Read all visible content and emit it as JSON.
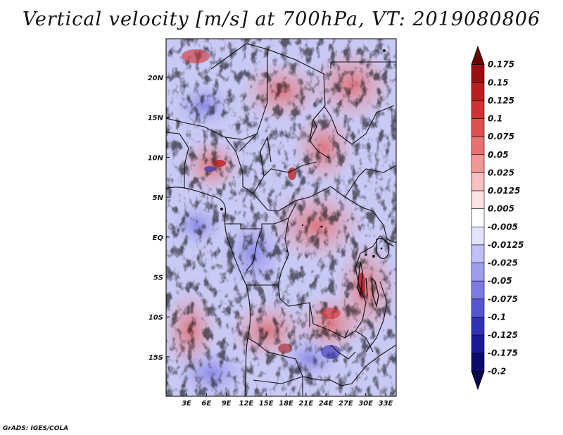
{
  "title": "Vertical velocity [m/s] at 700hPa, VT: 2019080806",
  "credit": "GrADS: IGES/COLA",
  "map": {
    "lat_labels": [
      "20N",
      "15N",
      "10N",
      "5N",
      "EQ",
      "5S",
      "10S",
      "15S"
    ],
    "lon_labels": [
      "3E",
      "6E",
      "9E",
      "12E",
      "15E",
      "18E",
      "21E",
      "24E",
      "27E",
      "30E",
      "33E"
    ]
  },
  "colorbar": {
    "labels": [
      "0.175",
      "0.15",
      "0.125",
      "0.1",
      "0.075",
      "0.05",
      "0.025",
      "0.0125",
      "0.005",
      "-0.005",
      "-0.0125",
      "-0.025",
      "-0.05",
      "-0.075",
      "-0.1",
      "-0.125",
      "-0.175",
      "-0.2"
    ],
    "colors": [
      "#6e0000",
      "#9b0f0f",
      "#b81e1e",
      "#cf3232",
      "#dd5050",
      "#e87272",
      "#f29898",
      "#f8c0c0",
      "#fde3e3",
      "#ffffff",
      "#e3e3fd",
      "#c0c0f6",
      "#9e9eee",
      "#7c7ce2",
      "#5656d0",
      "#3232b8",
      "#1a1a98",
      "#0c0c6e",
      "#06064e"
    ]
  }
}
